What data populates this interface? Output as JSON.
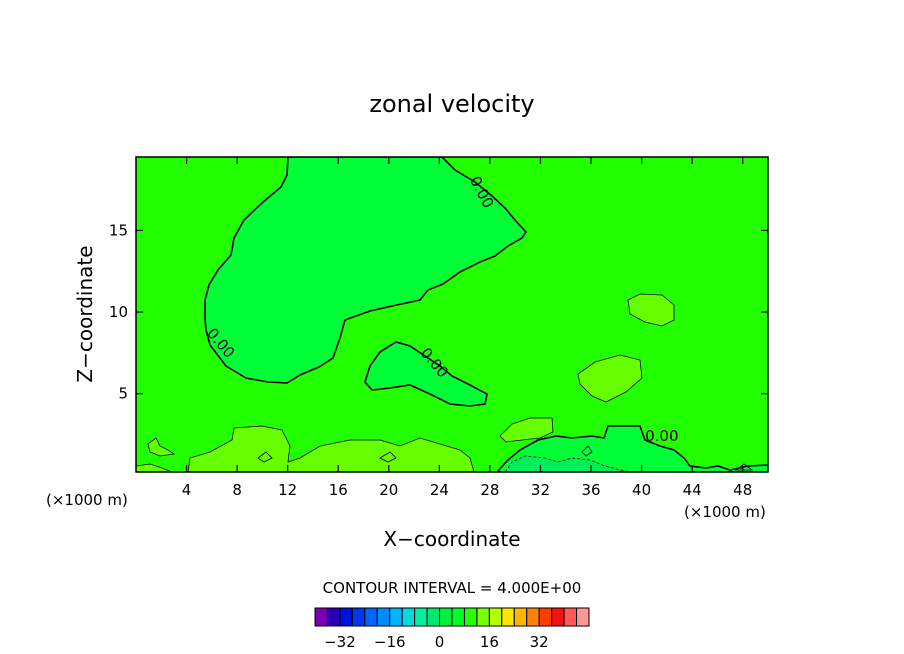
{
  "chart_data": {
    "type": "contour",
    "title": "zonal velocity",
    "xlabel": "X−coordinate",
    "ylabel": "Z−coordinate",
    "x_unit_left": "(×1000 m)",
    "x_unit_right": "(×1000 m)",
    "xlim": [
      0,
      50
    ],
    "ylim": [
      0.2,
      19.5
    ],
    "x_ticks": [
      4,
      8,
      12,
      16,
      20,
      24,
      28,
      32,
      36,
      40,
      44,
      48
    ],
    "y_ticks": [
      5,
      10,
      15
    ],
    "contour_interval_text": "CONTOUR INTERVAL = 4.000E+00",
    "contour_labels": [
      {
        "text": "0.00",
        "x": 27,
        "y": 17.2,
        "angle": 62
      },
      {
        "text": "0.00",
        "x": 6.4,
        "y": 7.9,
        "angle": 50
      },
      {
        "text": "0.00",
        "x": 23.3,
        "y": 6.7,
        "angle": 50
      },
      {
        "text": "0.00",
        "x": 41.6,
        "y": 2.1,
        "angle": 0
      }
    ],
    "colorbar": {
      "levels": [
        -36,
        -32,
        -28,
        -24,
        -20,
        -16,
        -12,
        -8,
        -4,
        0,
        4,
        8,
        12,
        16,
        20,
        24,
        28,
        32,
        36
      ],
      "colors": [
        "#7b00b4",
        "#2a00b4",
        "#0010dd",
        "#0038f0",
        "#0064ff",
        "#008cff",
        "#00b4ff",
        "#00dcdc",
        "#00f0a0",
        "#00e86e",
        "#00ee3c",
        "#00ff28",
        "#28ff00",
        "#78ff00",
        "#b4ff00",
        "#ffe600",
        "#ffb400",
        "#ff8200",
        "#ff3c00",
        "#f01414",
        "#ff5a5a",
        "#ff9696"
      ],
      "tick_labels": [
        "−32",
        "−16",
        "0",
        "16",
        "32"
      ],
      "tick_values": [
        -32,
        -16,
        0,
        16,
        32
      ]
    },
    "regions": [
      {
        "name": "background",
        "value": 2,
        "color": "#22ff00"
      },
      {
        "name": "negative-region-upper",
        "value": -2,
        "color": "#00ff36"
      },
      {
        "name": "negative-region-middle",
        "value": -2,
        "color": "#00ff36"
      },
      {
        "name": "negative-region-lower",
        "value": -2,
        "color": "#00ff36"
      },
      {
        "name": "negative-region-core",
        "value": -6,
        "color": "#00ee5a"
      },
      {
        "name": "positive-blob",
        "value": 6,
        "color": "#66ff00"
      }
    ]
  }
}
